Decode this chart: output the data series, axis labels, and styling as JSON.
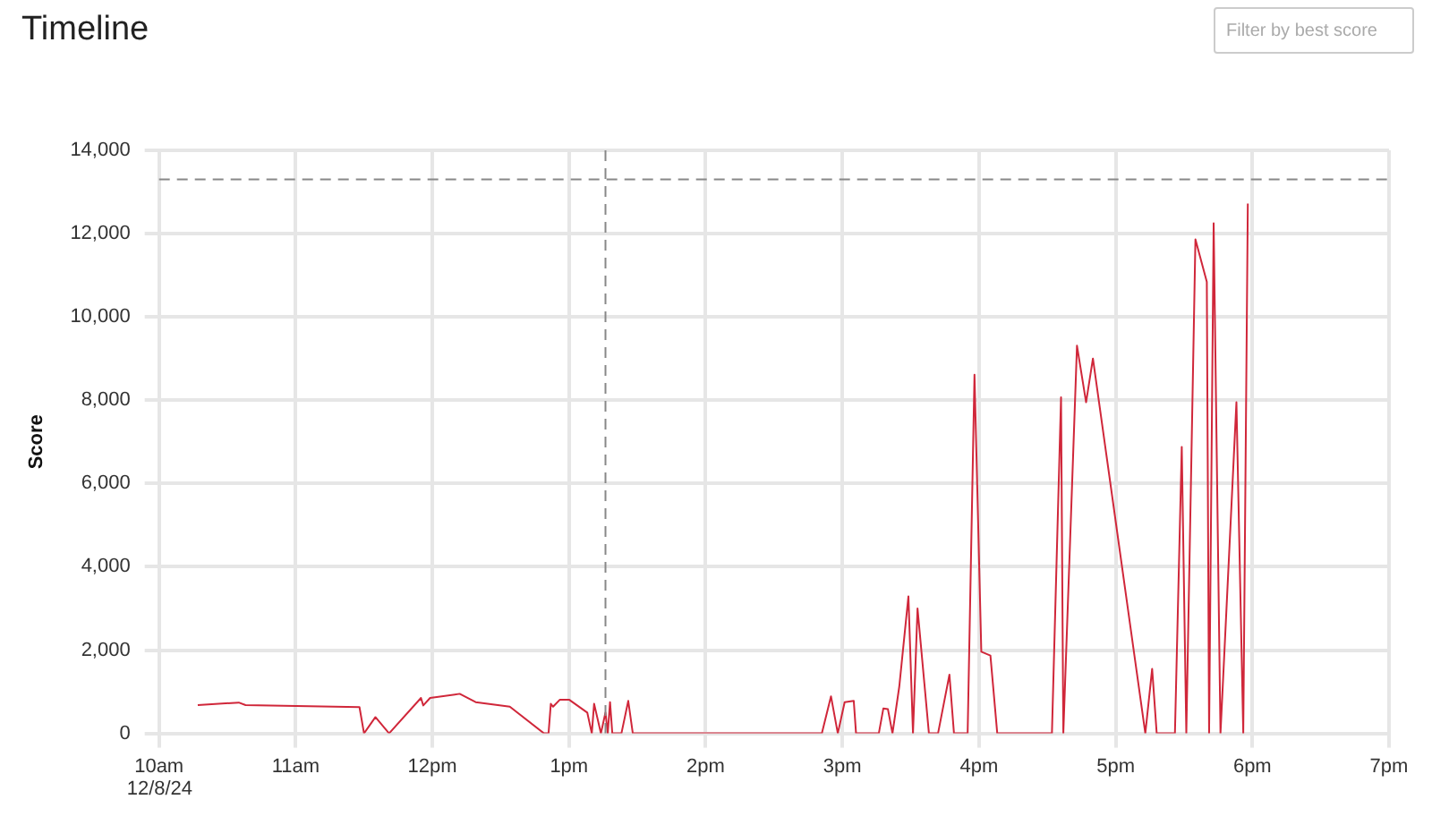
{
  "chart_data": {
    "type": "line",
    "title": "Timeline",
    "ylabel": "Score",
    "x": [
      "--12-08T10:17",
      "--12-08T10:35",
      "--12-08T10:38",
      "--12-08T11:28",
      "--12-08T11:30",
      "--12-08T11:35",
      "--12-08T11:41",
      "--12-08T11:55",
      "--12-08T11:56",
      "--12-08T11:59",
      "--12-08T12:12",
      "--12-08T12:19",
      "--12-08T12:34",
      "--12-08T12:49",
      "--12-08T12:51",
      "--12-08T12:52",
      "--12-08T12:53",
      "--12-08T12:56",
      "--12-08T13:00",
      "--12-08T13:08",
      "--12-08T13:10",
      "--12-08T13:11",
      "--12-08T13:14",
      "--12-08T13:16",
      "--12-08T13:17",
      "--12-08T13:18",
      "--12-08T13:19",
      "--12-08T13:23",
      "--12-08T13:26",
      "--12-08T13:28",
      "--12-08T14:51",
      "--12-08T14:55",
      "--12-08T14:58",
      "--12-08T15:01",
      "--12-08T15:05",
      "--12-08T15:06",
      "--12-08T15:16",
      "--12-08T15:18",
      "--12-08T15:20",
      "--12-08T15:22",
      "--12-08T15:25",
      "--12-08T15:29",
      "--12-08T15:31",
      "--12-08T15:33",
      "--12-08T15:38",
      "--12-08T15:42",
      "--12-08T15:47",
      "--12-08T15:49",
      "--12-08T15:55",
      "--12-08T15:58",
      "--12-08T16:01",
      "--12-08T16:05",
      "--12-08T16:08",
      "--12-08T16:32",
      "--12-08T16:36",
      "--12-08T16:37",
      "--12-08T16:43",
      "--12-08T16:47",
      "--12-08T16:50",
      "--12-08T17:13",
      "--12-08T17:16",
      "--12-08T17:18",
      "--12-08T17:26",
      "--12-08T17:29",
      "--12-08T17:31",
      "--12-08T17:35",
      "--12-08T17:40",
      "--12-08T17:41",
      "--12-08T17:43",
      "--12-08T17:46",
      "--12-08T17:53",
      "--12-08T17:56",
      "--12-08T17:58"
    ],
    "series": [
      {
        "color": "#d0273a",
        "values": [
          680,
          740,
          680,
          630,
          0,
          390,
          0,
          850,
          670,
          850,
          950,
          750,
          640,
          0,
          0,
          710,
          640,
          810,
          810,
          500,
          0,
          710,
          0,
          500,
          0,
          750,
          0,
          0,
          780,
          0,
          0,
          890,
          0,
          750,
          780,
          0,
          0,
          600,
          580,
          0,
          1130,
          3290,
          0,
          3000,
          0,
          0,
          1410,
          0,
          0,
          8610,
          1960,
          1870,
          0,
          0,
          8070,
          0,
          9310,
          7950,
          9000,
          0,
          1550,
          0,
          0,
          6880,
          0,
          11860,
          10840,
          0,
          12250,
          0,
          7950,
          0,
          12720
        ]
      }
    ],
    "xlim": [
      "--12-08T10:00",
      "--12-08T19:00"
    ],
    "xticks": [
      {
        "value": "--12-08T10:00",
        "label": "10am"
      },
      {
        "value": "--12-08T11:00",
        "label": "11am"
      },
      {
        "value": "--12-08T12:00",
        "label": "12pm"
      },
      {
        "value": "--12-08T13:00",
        "label": "1pm"
      },
      {
        "value": "--12-08T14:00",
        "label": "2pm"
      },
      {
        "value": "--12-08T15:00",
        "label": "3pm"
      },
      {
        "value": "--12-08T16:00",
        "label": "4pm"
      },
      {
        "value": "--12-08T17:00",
        "label": "5pm"
      },
      {
        "value": "--12-08T18:00",
        "label": "6pm"
      },
      {
        "value": "--12-08T19:00",
        "label": "7pm"
      }
    ],
    "ylim": [
      0,
      14000
    ],
    "yticks": [
      0,
      {
        "value": 2000,
        "label": "2,000"
      },
      {
        "value": 4000,
        "label": "4,000"
      },
      {
        "value": 6000,
        "label": "6,000"
      },
      {
        "value": 8000,
        "label": "8,000"
      },
      {
        "value": 10000,
        "label": "10,000"
      },
      {
        "value": 12000,
        "label": "12,000"
      },
      {
        "value": 14000,
        "label": "14,000"
      }
    ],
    "ref_lines": [
      {
        "axis": "y",
        "value": 13300,
        "color": "#888888",
        "line_style": "dashed"
      },
      {
        "axis": "x",
        "value": "--12-08T13:16",
        "color": "#888888",
        "line_style": "dashed"
      }
    ],
    "annotations": [
      "12/8/24",
      "Filter by best score"
    ],
    "grid": true,
    "legend": false,
    "marker": "none",
    "line_style": "solid"
  }
}
